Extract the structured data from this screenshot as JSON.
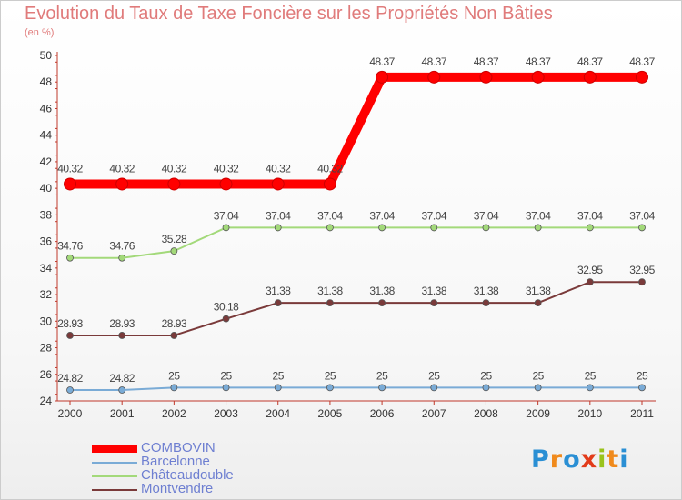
{
  "header": {
    "title": "Evolution du Taux de Taxe Foncière sur les Propriétés Non Bâties",
    "unit": "(en %)"
  },
  "logo": {
    "text": "Proxiti",
    "letters": [
      "P",
      "r",
      "o",
      "x",
      "i",
      "t",
      "i"
    ],
    "colors": [
      "#2a8fd4",
      "#f08a1c",
      "#2a8fd4",
      "#e23b1a",
      "#9ac31c",
      "#f08a1c",
      "#2a8fd4"
    ]
  },
  "chart_data": {
    "type": "line",
    "title": "Evolution du Taux de Taxe Foncière sur les Propriétés Non Bâties",
    "ylabel": "(en %)",
    "xlabel": "",
    "x": [
      "2000",
      "2001",
      "2002",
      "2003",
      "2004",
      "2005",
      "2006",
      "2007",
      "2008",
      "2009",
      "2010",
      "2011"
    ],
    "ylim": [
      24,
      50
    ],
    "yticks": [
      "24",
      "26",
      "28",
      "30",
      "32",
      "34",
      "36",
      "38",
      "40",
      "42",
      "44",
      "46",
      "48",
      "50"
    ],
    "grid": false,
    "legend": "bottom-left",
    "series": [
      {
        "name": "COMBOVIN",
        "color": "#ff0000",
        "values": [
          40.32,
          40.32,
          40.32,
          40.32,
          40.32,
          40.32,
          48.37,
          48.37,
          48.37,
          48.37,
          48.37,
          48.37
        ],
        "labels": [
          "40.32",
          "40.32",
          "40.32",
          "40.32",
          "40.32",
          "40.32",
          "48.37",
          "48.37",
          "48.37",
          "48.37",
          "48.37",
          "48.37"
        ]
      },
      {
        "name": "Barcelonne",
        "color": "#7aabd6",
        "values": [
          24.82,
          24.82,
          25,
          25,
          25,
          25,
          25,
          25,
          25,
          25,
          25,
          25
        ],
        "labels": [
          "24.82",
          "24.82",
          "25",
          "25",
          "25",
          "25",
          "25",
          "25",
          "25",
          "25",
          "25",
          "25"
        ]
      },
      {
        "name": "Châteaudouble",
        "color": "#a3d97a",
        "values": [
          34.76,
          34.76,
          35.28,
          37.04,
          37.04,
          37.04,
          37.04,
          37.04,
          37.04,
          37.04,
          37.04,
          37.04
        ],
        "labels": [
          "34.76",
          "34.76",
          "35.28",
          "37.04",
          "37.04",
          "37.04",
          "37.04",
          "37.04",
          "37.04",
          "37.04",
          "37.04",
          "37.04"
        ]
      },
      {
        "name": "Montvendre",
        "color": "#7a3a3a",
        "values": [
          28.93,
          28.93,
          28.93,
          30.18,
          31.38,
          31.38,
          31.38,
          31.38,
          31.38,
          31.38,
          32.95,
          32.95
        ],
        "labels": [
          "28.93",
          "28.93",
          "28.93",
          "30.18",
          "31.38",
          "31.38",
          "31.38",
          "31.38",
          "31.38",
          "31.38",
          "32.95",
          "32.95"
        ]
      }
    ]
  }
}
